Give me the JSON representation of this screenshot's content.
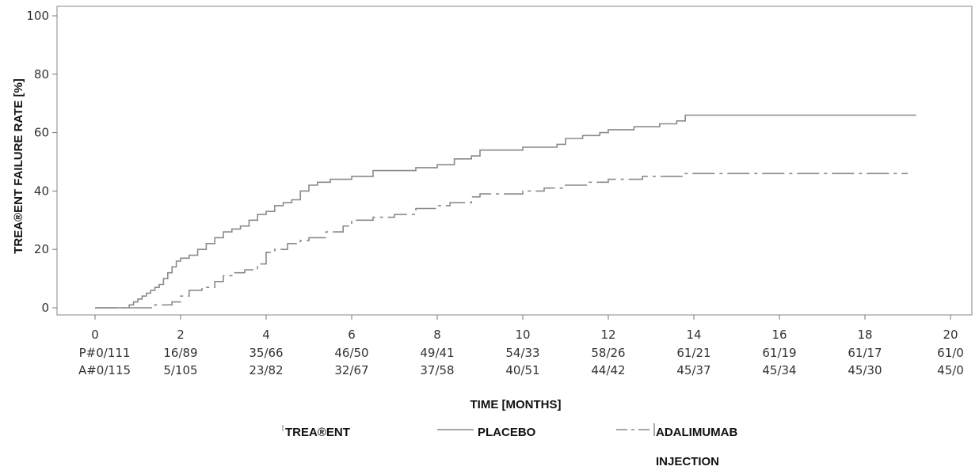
{
  "chart_data": {
    "type": "line",
    "xlabel": "TIME [MONTHS]",
    "ylabel": "TREA®ENT FAILURE RATE [%]",
    "xlim": [
      0,
      20
    ],
    "ylim": [
      0,
      100
    ],
    "x_ticks": [
      0,
      2,
      4,
      6,
      8,
      10,
      12,
      14,
      16,
      18,
      20
    ],
    "y_ticks": [
      0,
      20,
      40,
      60,
      80,
      100
    ],
    "grid": false,
    "series": [
      {
        "name": "PLACEBO",
        "line_style": "solid",
        "points": [
          [
            0,
            0
          ],
          [
            0.6,
            0
          ],
          [
            0.8,
            1
          ],
          [
            0.9,
            2
          ],
          [
            1.0,
            3
          ],
          [
            1.1,
            4
          ],
          [
            1.2,
            5
          ],
          [
            1.3,
            6
          ],
          [
            1.4,
            7
          ],
          [
            1.5,
            8
          ],
          [
            1.6,
            10
          ],
          [
            1.7,
            12
          ],
          [
            1.8,
            14
          ],
          [
            1.9,
            16
          ],
          [
            2.0,
            17
          ],
          [
            2.2,
            18
          ],
          [
            2.4,
            20
          ],
          [
            2.6,
            22
          ],
          [
            2.8,
            24
          ],
          [
            3.0,
            26
          ],
          [
            3.2,
            27
          ],
          [
            3.4,
            28
          ],
          [
            3.6,
            30
          ],
          [
            3.8,
            32
          ],
          [
            4.0,
            33
          ],
          [
            4.2,
            35
          ],
          [
            4.4,
            36
          ],
          [
            4.6,
            37
          ],
          [
            4.8,
            40
          ],
          [
            5.0,
            42
          ],
          [
            5.2,
            43
          ],
          [
            5.5,
            44
          ],
          [
            6.0,
            45
          ],
          [
            6.5,
            47
          ],
          [
            7.0,
            47
          ],
          [
            7.5,
            48
          ],
          [
            8.0,
            49
          ],
          [
            8.4,
            51
          ],
          [
            8.8,
            52
          ],
          [
            9.0,
            54
          ],
          [
            10.0,
            55
          ],
          [
            10.8,
            56
          ],
          [
            11.0,
            58
          ],
          [
            11.4,
            59
          ],
          [
            11.8,
            60
          ],
          [
            12.0,
            61
          ],
          [
            12.6,
            62
          ],
          [
            13.2,
            63
          ],
          [
            13.6,
            64
          ],
          [
            13.8,
            66
          ],
          [
            14.5,
            66
          ],
          [
            19.2,
            66
          ]
        ]
      },
      {
        "name": "ADALIMUMAB INJECTION",
        "line_style": "dash-dot",
        "points": [
          [
            0,
            0
          ],
          [
            1.2,
            0
          ],
          [
            1.4,
            1
          ],
          [
            1.8,
            2
          ],
          [
            2.0,
            4
          ],
          [
            2.2,
            6
          ],
          [
            2.5,
            7
          ],
          [
            2.8,
            9
          ],
          [
            3.0,
            11
          ],
          [
            3.2,
            12
          ],
          [
            3.5,
            13
          ],
          [
            3.8,
            15
          ],
          [
            4.0,
            19
          ],
          [
            4.2,
            20
          ],
          [
            4.5,
            22
          ],
          [
            4.8,
            23
          ],
          [
            5.0,
            24
          ],
          [
            5.4,
            26
          ],
          [
            5.8,
            28
          ],
          [
            6.0,
            30
          ],
          [
            6.5,
            31
          ],
          [
            7.0,
            32
          ],
          [
            7.5,
            34
          ],
          [
            8.0,
            35
          ],
          [
            8.3,
            36
          ],
          [
            8.8,
            38
          ],
          [
            9.0,
            39
          ],
          [
            10.0,
            40
          ],
          [
            10.5,
            41
          ],
          [
            11.0,
            42
          ],
          [
            11.5,
            43
          ],
          [
            12.0,
            44
          ],
          [
            12.8,
            45
          ],
          [
            13.8,
            46
          ],
          [
            15.0,
            46
          ],
          [
            19.0,
            46
          ]
        ]
      }
    ],
    "risk_table": {
      "row_labels": [
        "P#0/111",
        "A#0/115"
      ],
      "placebo": [
        "16/89",
        "35/66",
        "46/50",
        "49/41",
        "54/33",
        "58/26",
        "61/21",
        "61/19",
        "61/17",
        "61/0"
      ],
      "adalimumab": [
        "5/105",
        "23/82",
        "32/67",
        "37/58",
        "40/51",
        "44/42",
        "45/37",
        "45/34",
        "45/30",
        "45/0"
      ]
    },
    "legend": {
      "heading": "TREA®ENT",
      "items": [
        "PLACEBO",
        "ADALIMUMAB",
        "INJECTION"
      ]
    }
  }
}
